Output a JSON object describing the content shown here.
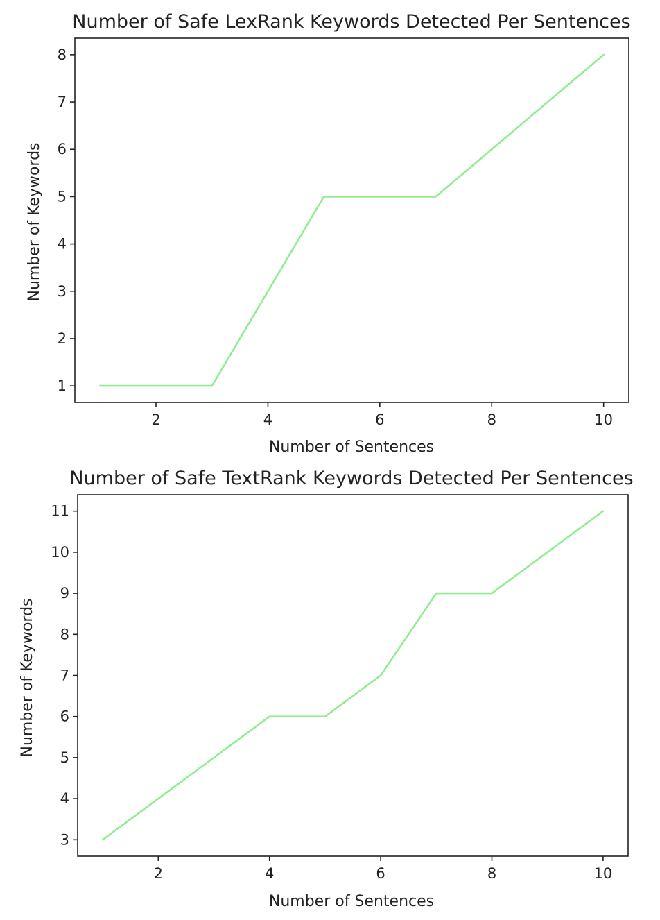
{
  "chart_data": [
    {
      "type": "line",
      "title": "Number of Safe LexRank Keywords Detected Per Sentences",
      "xlabel": "Number of Sentences",
      "ylabel": "Number of Keywords",
      "x": [
        1,
        2,
        3,
        4,
        5,
        6,
        7,
        8,
        9,
        10
      ],
      "series": [
        {
          "values": [
            1,
            1,
            1,
            3,
            5,
            5,
            5,
            6,
            7,
            8
          ],
          "color": "#90ee90"
        }
      ],
      "xlim": [
        0.55,
        10.45
      ],
      "ylim": [
        0.65,
        8.35
      ],
      "xticks": [
        2,
        4,
        6,
        8,
        10
      ],
      "yticks": [
        1,
        2,
        3,
        4,
        5,
        6,
        7,
        8
      ],
      "grid": false,
      "legend": "none"
    },
    {
      "type": "line",
      "title": "Number of Safe TextRank Keywords Detected Per Sentences",
      "xlabel": "Number of Sentences",
      "ylabel": "Number of Keywords",
      "x": [
        1,
        2,
        3,
        4,
        5,
        6,
        7,
        8,
        9,
        10
      ],
      "series": [
        {
          "values": [
            3,
            4,
            5,
            6,
            6,
            7,
            9,
            9,
            10,
            11
          ],
          "color": "#90ee90"
        }
      ],
      "xlim": [
        0.55,
        10.45
      ],
      "ylim": [
        2.6,
        11.4
      ],
      "xticks": [
        2,
        4,
        6,
        8,
        10
      ],
      "yticks": [
        3,
        4,
        5,
        6,
        7,
        8,
        9,
        10,
        11
      ],
      "grid": false,
      "legend": "none"
    }
  ]
}
